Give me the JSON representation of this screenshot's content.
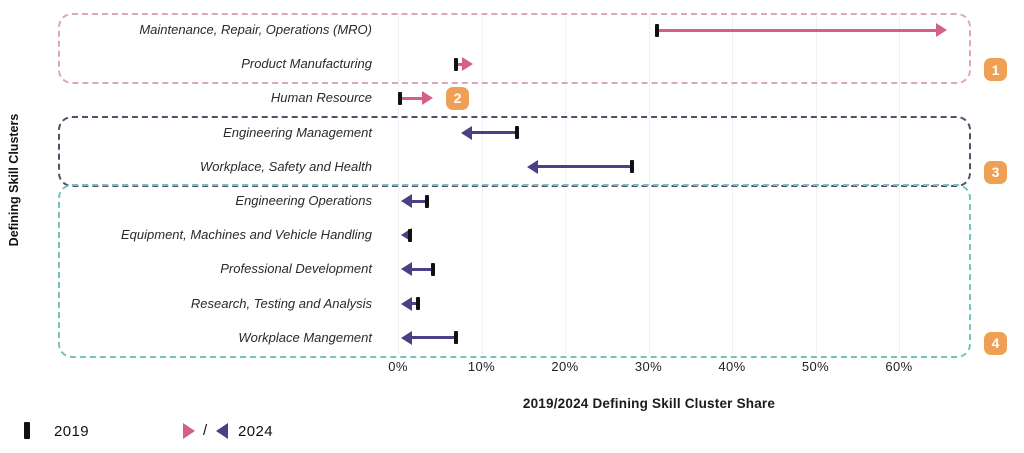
{
  "chart_data": {
    "type": "dumbbell-arrow",
    "title": "",
    "xlabel": "2019/2024 Defining Skill Cluster Share",
    "ylabel": "Defining Skill Clusters",
    "x_ticks": [
      "0%",
      "10%",
      "20%",
      "30%",
      "40%",
      "50%",
      "60%"
    ],
    "x_tick_values": [
      0,
      10,
      20,
      30,
      40,
      50,
      60
    ],
    "xlim": [
      0,
      68.5
    ],
    "series_names": [
      "2019",
      "2024"
    ],
    "rows": [
      {
        "label": "Maintenance, Repair, Operations (MRO)",
        "value_2019": 31.0,
        "value_2024": 65.7
      },
      {
        "label": "Product Manufacturing",
        "value_2019": 7.0,
        "value_2024": 9.0
      },
      {
        "label": "Human Resource",
        "value_2019": 0.2,
        "value_2024": 4.2
      },
      {
        "label": "Engineering Management",
        "value_2019": 14.3,
        "value_2024": 7.6
      },
      {
        "label": "Workplace, Safety and Health",
        "value_2019": 28.0,
        "value_2024": 15.5
      },
      {
        "label": "Engineering Operations",
        "value_2019": 3.5,
        "value_2024": 0.3
      },
      {
        "label": "Equipment, Machines and Vehicle Handling",
        "value_2019": 1.4,
        "value_2024": 0.3
      },
      {
        "label": "Professional Development",
        "value_2019": 4.2,
        "value_2024": 0.3
      },
      {
        "label": "Research, Testing and Analysis",
        "value_2019": 2.4,
        "value_2024": 0.3
      },
      {
        "label": "Workplace Mangement",
        "value_2019": 7.0,
        "value_2024": 0.3
      }
    ],
    "groups": [
      {
        "number": "1",
        "row_start": 0,
        "row_end": 1,
        "box": true,
        "border_color": "#dfa6b6",
        "badge_position": "right"
      },
      {
        "number": "2",
        "row_start": 2,
        "row_end": 2,
        "box": false,
        "border_color": "",
        "badge_position": "inline"
      },
      {
        "number": "3",
        "row_start": 3,
        "row_end": 4,
        "box": true,
        "border_color": "#50506a",
        "badge_position": "right"
      },
      {
        "number": "4",
        "row_start": 5,
        "row_end": 9,
        "box": true,
        "border_color": "#74c4bd",
        "badge_position": "right"
      }
    ],
    "legend_position": "bottom-left",
    "grid": "vertical-dotted"
  },
  "legend": {
    "label_2019": "2019",
    "separator": "/",
    "label_2024": "2024"
  },
  "colors": {
    "increase": "#d4608a",
    "decrease": "#4b3f85",
    "marker_2019": "#111111",
    "badge_bg": "#efa055",
    "badge_text": "#ffffff",
    "gridline": "#e3e3e3"
  }
}
